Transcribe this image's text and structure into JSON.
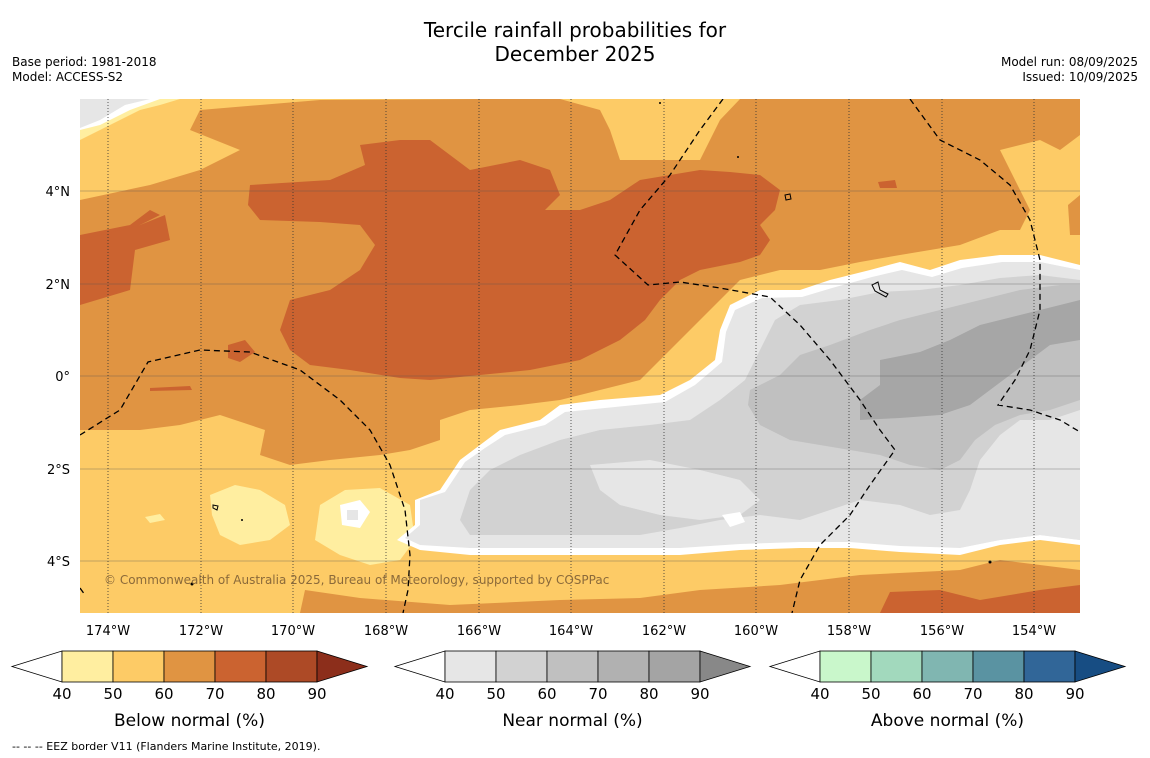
{
  "header": {
    "title_line1": "Tercile rainfall probabilities for",
    "title_line2": "December 2025",
    "base_period": "Base period: 1981-2018",
    "model": "Model: ACCESS-S2",
    "model_run": "Model run: 08/09/2025",
    "issued": "Issued: 10/09/2025"
  },
  "map": {
    "copyright": "© Commonwealth of Australia 2025, Bureau of Meteorology, supported by COSPPac",
    "lon_ticks": [
      "174°W",
      "172°W",
      "170°W",
      "168°W",
      "166°W",
      "164°W",
      "162°W",
      "160°W",
      "158°W",
      "156°W",
      "154°W"
    ],
    "lat_ticks": [
      "4°N",
      "2°N",
      "0°",
      "2°S",
      "4°S"
    ],
    "lon_range": [
      "174.6°W",
      "152.9°W"
    ],
    "lat_range": [
      "5.2°S",
      "6°N"
    ]
  },
  "colorbars": [
    {
      "label": "Below normal (%)",
      "ticks": [
        "40",
        "50",
        "60",
        "70",
        "80",
        "90"
      ],
      "colors": [
        "#ffeea0",
        "#fdcb66",
        "#e09442",
        "#cb6330",
        "#ad4a26",
        "#8c2e1b"
      ]
    },
    {
      "label": "Near normal (%)",
      "ticks": [
        "40",
        "50",
        "60",
        "70",
        "80",
        "90"
      ],
      "colors": [
        "#e6e6e6",
        "#d2d2d2",
        "#c0c0c0",
        "#b1b1b1",
        "#a4a4a4",
        "#888888"
      ]
    },
    {
      "label": "Above normal (%)",
      "ticks": [
        "40",
        "50",
        "60",
        "70",
        "80",
        "90"
      ],
      "colors": [
        "#c9f7cb",
        "#a2d9bd",
        "#80b6b1",
        "#5a93a2",
        "#316698",
        "#174d83"
      ]
    }
  ],
  "footnote": "-- -- -- EEZ border V11 (Flanders Marine Institute, 2019).",
  "palette": {
    "below_40_50": "#ffeea0",
    "below_50_60": "#fdcb66",
    "below_60_70": "#e09442",
    "below_70_80": "#cb6330",
    "near_40_50": "#e6e6e6",
    "near_50_60": "#d2d2d2",
    "near_60_70": "#c0c0c0",
    "near_70_80": "#a6a6a6"
  }
}
